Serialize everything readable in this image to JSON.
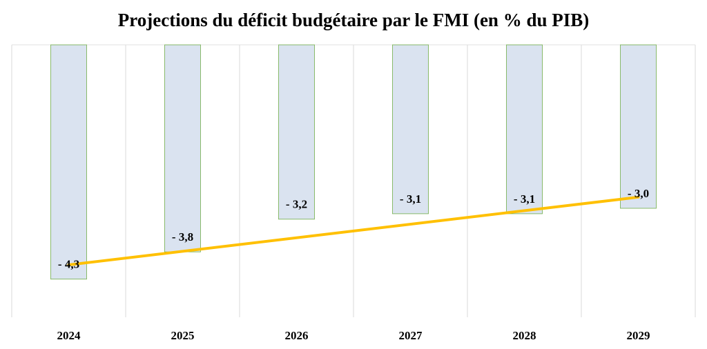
{
  "chart_data": {
    "type": "bar",
    "title": "Projections du déficit budgétaire par le FMI (en % du PIB)",
    "categories": [
      "2024",
      "2025",
      "2026",
      "2027",
      "2028",
      "2029"
    ],
    "values": [
      -4.3,
      -3.8,
      -3.2,
      -3.1,
      -3.1,
      -3.0
    ],
    "value_labels": [
      "- 4,3",
      "- 3,8",
      "- 3,2",
      "- 3,1",
      "- 3,1",
      "- 3,0"
    ],
    "color": "#dae3f0",
    "edge_color": "#70ad47",
    "ylim": [
      -5,
      0
    ],
    "trendline": {
      "kind": "linear",
      "color": "#ffc000"
    }
  }
}
